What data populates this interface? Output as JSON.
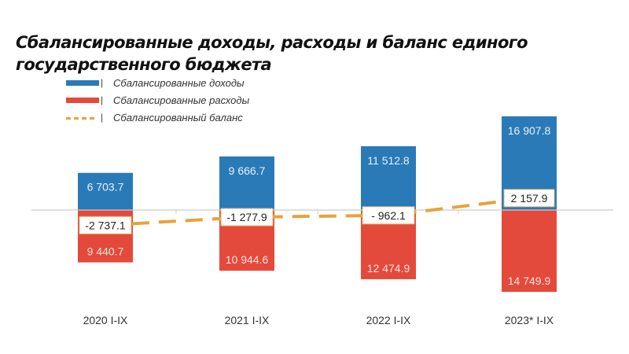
{
  "chart_data": {
    "type": "bar",
    "title": "Сбалансированные доходы, расходы и баланс единого государственного бюджета",
    "categories": [
      "2020 I-IX",
      "2021 I-IX",
      "2022 I-IX",
      "2023* I-IX"
    ],
    "series": [
      {
        "name": "Сбалансированные доходы",
        "type": "bar",
        "color": "#2a7ab8",
        "values": [
          6703.7,
          9666.7,
          11512.8,
          16907.8
        ],
        "labels": [
          "6 703.7",
          "9 666.7",
          "11 512.8",
          "16 907.8"
        ]
      },
      {
        "name": "Сбалансированные расходы",
        "type": "bar",
        "color": "#e34a3b",
        "values": [
          -9440.7,
          -10944.6,
          -12474.9,
          -14749.9
        ],
        "labels": [
          "9 440.7",
          "10 944.6",
          "12 474.9",
          "14 749.9"
        ]
      },
      {
        "name": "Сбалансированный баланс",
        "type": "line",
        "style": "dashed",
        "color": "#e8a23a",
        "values": [
          -2737.1,
          -1277.9,
          -962.1,
          2157.9
        ],
        "labels": [
          "-2 737.1",
          "-1 277.9",
          "- 962.1",
          "2 157.9"
        ]
      }
    ],
    "legend": "top-left",
    "grid": false
  }
}
